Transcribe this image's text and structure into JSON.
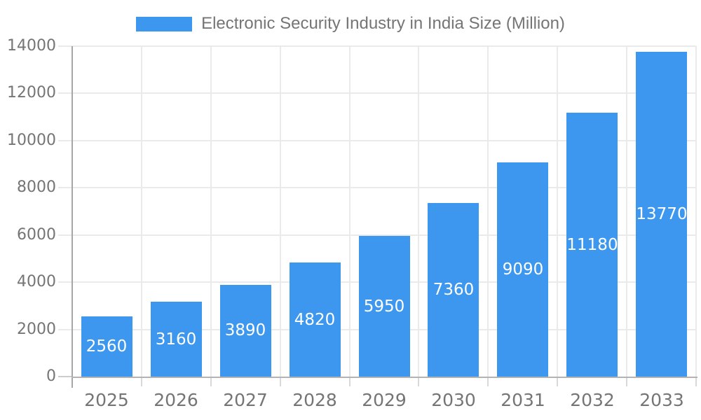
{
  "chart_data": {
    "type": "bar",
    "title": "Electronic Security Industry in India Size (Million)",
    "categories": [
      "2025",
      "2026",
      "2027",
      "2028",
      "2029",
      "2030",
      "2031",
      "2032",
      "2033"
    ],
    "values": [
      2560,
      3160,
      3890,
      4820,
      5950,
      7360,
      9090,
      11180,
      13770
    ],
    "xlabel": "",
    "ylabel": "",
    "ylim": [
      0,
      14000
    ],
    "yticks": [
      0,
      2000,
      4000,
      6000,
      8000,
      10000,
      12000,
      14000
    ],
    "grid": "on",
    "legend_position": "top-center",
    "bar_value_labels_inside": true,
    "colors": {
      "bar": "#3d97ee",
      "bar_value_label": "#ffffff",
      "axis_text": "#757575",
      "legend_text": "#757575",
      "gridline": "#eaeaea",
      "tick": "#d9d9d9",
      "zero_tick": "#cccccc",
      "y_axis_line": "#a6a6a6",
      "x_axis_line": "#b3b3b3"
    }
  }
}
